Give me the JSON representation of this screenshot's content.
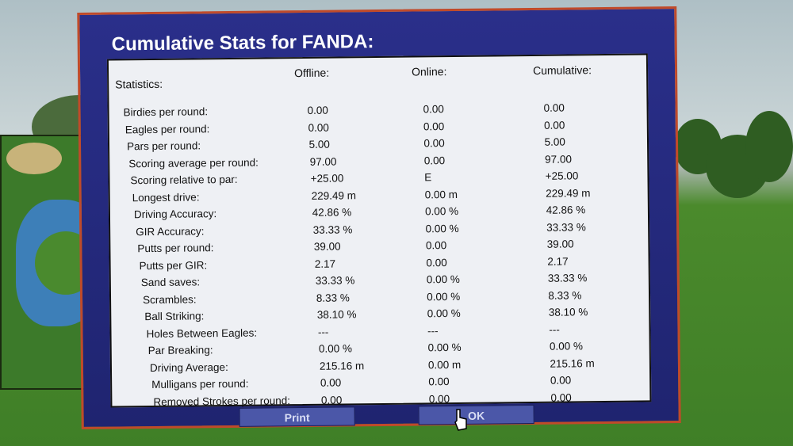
{
  "window": {
    "title": "Cumulative Stats for FANDA:"
  },
  "columns": {
    "label": "Statistics:",
    "offline": "Offline:",
    "online": "Online:",
    "cumulative": "Cumulative:"
  },
  "stats": [
    {
      "label": "Birdies per round:",
      "offline": "0.00",
      "online": "0.00",
      "cumulative": "0.00"
    },
    {
      "label": "Eagles per round:",
      "offline": "0.00",
      "online": "0.00",
      "cumulative": "0.00"
    },
    {
      "label": "Pars per round:",
      "offline": "5.00",
      "online": "0.00",
      "cumulative": "5.00"
    },
    {
      "label": "Scoring average per round:",
      "offline": "97.00",
      "online": "0.00",
      "cumulative": "97.00"
    },
    {
      "label": "Scoring relative to par:",
      "offline": "+25.00",
      "online": "E",
      "cumulative": "+25.00"
    },
    {
      "label": "Longest drive:",
      "offline": "229.49 m",
      "online": "0.00 m",
      "cumulative": "229.49 m"
    },
    {
      "label": "Driving Accuracy:",
      "offline": "42.86 %",
      "online": "0.00 %",
      "cumulative": "42.86 %"
    },
    {
      "label": "GIR Accuracy:",
      "offline": "33.33 %",
      "online": "0.00 %",
      "cumulative": "33.33 %"
    },
    {
      "label": "Putts per round:",
      "offline": "39.00",
      "online": "0.00",
      "cumulative": "39.00"
    },
    {
      "label": "Putts per GIR:",
      "offline": "2.17",
      "online": "0.00",
      "cumulative": "2.17"
    },
    {
      "label": "Sand saves:",
      "offline": "33.33 %",
      "online": "0.00 %",
      "cumulative": "33.33 %"
    },
    {
      "label": "Scrambles:",
      "offline": "8.33 %",
      "online": "0.00 %",
      "cumulative": "8.33 %"
    },
    {
      "label": "Ball Striking:",
      "offline": "38.10 %",
      "online": "0.00 %",
      "cumulative": "38.10 %"
    },
    {
      "label": "Holes Between Eagles:",
      "offline": "---",
      "online": "---",
      "cumulative": "---"
    },
    {
      "label": "Par Breaking:",
      "offline": "0.00 %",
      "online": "0.00 %",
      "cumulative": "0.00 %"
    },
    {
      "label": "Driving Average:",
      "offline": "215.16 m",
      "online": "0.00 m",
      "cumulative": "215.16 m"
    },
    {
      "label": "Mulligans per round:",
      "offline": "0.00",
      "online": "0.00",
      "cumulative": "0.00"
    },
    {
      "label": "Removed Strokes per round:",
      "offline": "0.00",
      "online": "0.00",
      "cumulative": "0.00"
    }
  ],
  "buttons": {
    "print": "Print",
    "ok": "OK"
  },
  "colors": {
    "frame": "#2a2f8a",
    "frame_border": "#c04a2a",
    "panel": "#eef0f4",
    "button": "#4b57a8"
  }
}
